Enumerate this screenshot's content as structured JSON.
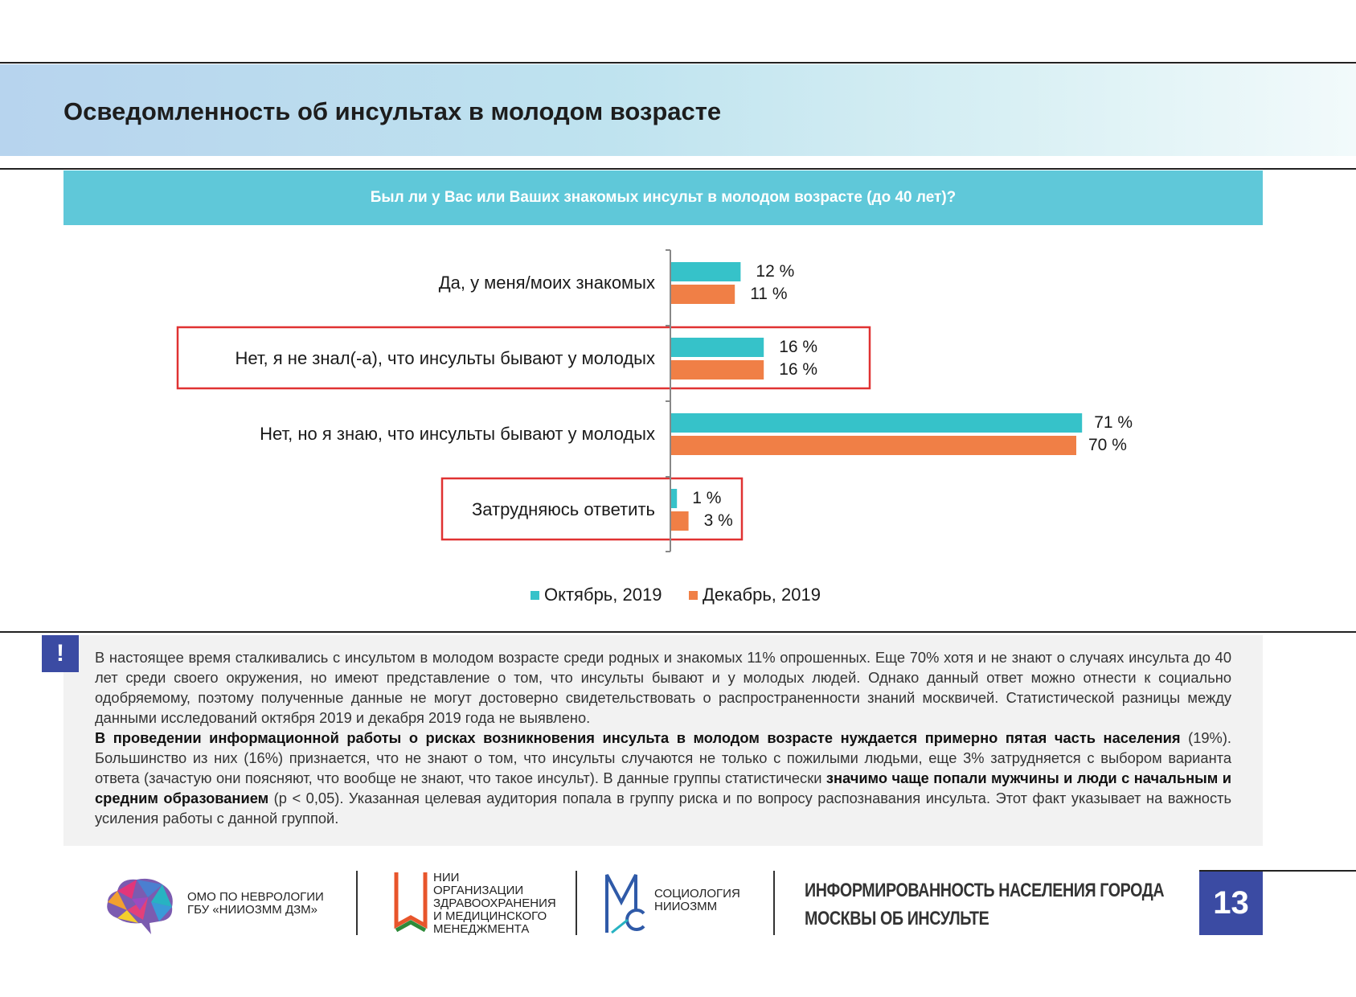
{
  "header": {
    "title": "Осведомленность об инсультах в молодом возрасте"
  },
  "question": "Был ли у Вас или Ваших знакомых инсульт в молодом возрасте (до 40 лет)?",
  "chart_data": {
    "type": "bar",
    "orientation": "horizontal",
    "categories": [
      "Да, у меня/моих знакомых",
      "Нет, я не знал(-а), что инсульты бывают у молодых",
      "Нет, но я знаю, что инсульты бывают у молодых",
      "Затрудняюсь ответить"
    ],
    "series": [
      {
        "name": "Октябрь, 2019",
        "color": "#36c2c9",
        "values": [
          12,
          16,
          71,
          1
        ]
      },
      {
        "name": "Декабрь, 2019",
        "color": "#f07f46",
        "values": [
          11,
          16,
          70,
          3
        ]
      }
    ],
    "value_labels": [
      [
        "12 %",
        "16 %",
        "71 %",
        "1 %"
      ],
      [
        "11 %",
        "16 %",
        "70 %",
        "3 %"
      ]
    ],
    "highlighted_categories": [
      1,
      3
    ],
    "highlight_color": "#e03232",
    "legend_position": "bottom",
    "xlim": [
      0,
      100
    ]
  },
  "info": {
    "badge": "!",
    "p1": "В настоящее время сталкивались с инсультом в молодом возрасте среди родных и знакомых 11% опрошенных.  Еще 70% хотя и не знают о случаях инсульта до 40 лет среди своего окружения, но имеют представление о том, что инсульты бывают и у молодых людей. Однако данный ответ можно отнести к социально одобряемому, поэтому полученные данные не могут достоверно свидетельствовать о распространенности знаний москвичей. Статистической разницы между данными исследований октября 2019 и декабря 2019 года не выявлено.",
    "p2_bold": "В проведении информационной работы о рисках возникновения инсульта в молодом возрасте нуждается примерно пятая часть населения",
    "p2_mid": " (19%). Большинство из них (16%) признается, что не знают о том, что инсульты случаются не только с пожилыми людьми, еще 3% затрудняется с выбором варианта ответа (зачастую они поясняют, что вообще не знают, что такое инсульт). В данные группы статистически ",
    "p2_bold2": "значимо чаще попали мужчины и люди с начальным и средним образованием",
    "p2_end": " (p < 0,05). Указанная целевая аудитория попала в группу риска и по вопросу распознавания инсульта. Этот факт указывает на важность усиления работы с данной группой."
  },
  "footer": {
    "org1_line1": "ОМО по неврологии",
    "org1_line2": "ГБУ «НИИОЗММ ДЗМ»",
    "org2_line1": "НИИ",
    "org2_line2": "организации",
    "org2_line3": "здравоохранения",
    "org2_line4": "и медицинского",
    "org2_line5": "менеджмента",
    "org3_line1": "Социология",
    "org3_line2": "НИИОЗММ",
    "report_title_line1": "ИНФОРМИРОВАННОСТЬ НАСЕЛЕНИЯ ГОРОДА",
    "report_title_line2": "МОСКВЫ ОБ  ИНСУЛЬТЕ",
    "page_number": "13"
  }
}
